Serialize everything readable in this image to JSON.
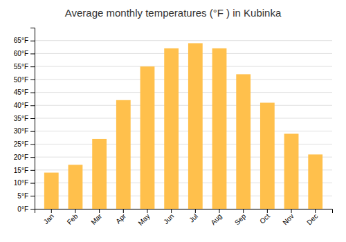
{
  "chart_data": {
    "type": "bar",
    "title": "Average monthly temperatures (°F ) in Kubinka",
    "categories": [
      "Jan",
      "Feb",
      "Mar",
      "Apr",
      "May",
      "Jun",
      "Jul",
      "Aug",
      "Sep",
      "Oct",
      "Nov",
      "Dec"
    ],
    "values": [
      14,
      17,
      27,
      42,
      55,
      62,
      64,
      62,
      52,
      41,
      29,
      21
    ],
    "color": "#FFC04C",
    "ylim": [
      0,
      70
    ],
    "yticks": [
      {
        "value": 0,
        "label": "0°F"
      },
      {
        "value": 5,
        "label": "5°F"
      },
      {
        "value": 10,
        "label": "10°F"
      },
      {
        "value": 15,
        "label": "15°F"
      },
      {
        "value": 20,
        "label": "20°F"
      },
      {
        "value": 25,
        "label": "25°F"
      },
      {
        "value": 30,
        "label": "30°F"
      },
      {
        "value": 35,
        "label": "35°F"
      },
      {
        "value": 40,
        "label": "40°F"
      },
      {
        "value": 45,
        "label": "45°F"
      },
      {
        "value": 50,
        "label": "50°F"
      },
      {
        "value": 55,
        "label": "55°F"
      },
      {
        "value": 60,
        "label": "60°F"
      },
      {
        "value": 65,
        "label": "65°F"
      }
    ],
    "grid": true
  }
}
